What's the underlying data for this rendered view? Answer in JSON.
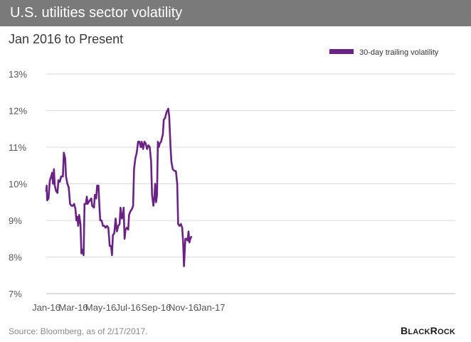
{
  "header": {
    "title": "U.S. utilities sector volatility",
    "subtitle": "Jan 2016 to Present"
  },
  "footer": {
    "source": "Source: Bloomberg, as of 2/17/2017.",
    "logo_text": "BLACKROCK"
  },
  "colors": {
    "title_bar": "#7a7a7a",
    "series": "#6a2285",
    "gridline": "#d9d9d9",
    "axis_text": "#555555"
  },
  "chart_data": {
    "type": "line",
    "title": "U.S. utilities sector volatility",
    "subtitle": "Jan 2016 to Present",
    "xlabel": "",
    "ylabel": "",
    "ylim": [
      7,
      13
    ],
    "y_ticks": [
      13,
      12,
      11,
      10,
      9,
      8,
      7
    ],
    "y_tick_labels": [
      "13%",
      "12%",
      "11%",
      "10%",
      "9%",
      "8%",
      "7%"
    ],
    "x_ticks": [
      "2016-01-01",
      "2016-03-01",
      "2016-05-01",
      "2016-07-01",
      "2016-09-01",
      "2016-11-01",
      "2017-01-01"
    ],
    "x_tick_labels": [
      "Jan-16",
      "Mar-16",
      "May-16",
      "Jul-16",
      "Sep-16",
      "Nov-16",
      "Jan-17"
    ],
    "xlim": [
      "2016-01-01",
      "2017-02-17"
    ],
    "grid": true,
    "legend": "top-right",
    "series": [
      {
        "name": "30-day trailing volatility",
        "points": [
          [
            "2016-01-01",
            9.8
          ],
          [
            "2016-01-02",
            9.95
          ],
          [
            "2016-01-03",
            9.55
          ],
          [
            "2016-01-06",
            9.6
          ],
          [
            "2016-01-09",
            10.1
          ],
          [
            "2016-01-12",
            10.2
          ],
          [
            "2016-01-14",
            10.3
          ],
          [
            "2016-01-16",
            10.0
          ],
          [
            "2016-01-18",
            10.4
          ],
          [
            "2016-01-20",
            9.95
          ],
          [
            "2016-01-23",
            9.8
          ],
          [
            "2016-01-26",
            9.75
          ],
          [
            "2016-01-28",
            10.1
          ],
          [
            "2016-01-31",
            10.05
          ],
          [
            "2016-02-03",
            10.2
          ],
          [
            "2016-02-07",
            10.2
          ],
          [
            "2016-02-09",
            10.85
          ],
          [
            "2016-02-12",
            10.7
          ],
          [
            "2016-02-14",
            10.2
          ],
          [
            "2016-02-17",
            10.0
          ],
          [
            "2016-02-20",
            9.9
          ],
          [
            "2016-02-23",
            9.45
          ],
          [
            "2016-02-26",
            9.4
          ],
          [
            "2016-02-29",
            9.4
          ],
          [
            "2016-03-03",
            9.45
          ],
          [
            "2016-03-06",
            9.3
          ],
          [
            "2016-03-08",
            9.0
          ],
          [
            "2016-03-10",
            9.1
          ],
          [
            "2016-03-12",
            8.85
          ],
          [
            "2016-03-14",
            9.15
          ],
          [
            "2016-03-17",
            8.9
          ],
          [
            "2016-03-19",
            8.1
          ],
          [
            "2016-03-21",
            8.2
          ],
          [
            "2016-03-24",
            8.05
          ],
          [
            "2016-03-26",
            9.45
          ],
          [
            "2016-03-29",
            9.45
          ],
          [
            "2016-03-31",
            9.65
          ],
          [
            "2016-04-02",
            9.45
          ],
          [
            "2016-04-04",
            9.5
          ],
          [
            "2016-04-07",
            9.55
          ],
          [
            "2016-04-10",
            9.6
          ],
          [
            "2016-04-12",
            9.4
          ],
          [
            "2016-04-16",
            9.35
          ],
          [
            "2016-04-18",
            9.7
          ],
          [
            "2016-04-21",
            9.6
          ],
          [
            "2016-04-23",
            9.95
          ],
          [
            "2016-04-26",
            9.95
          ],
          [
            "2016-04-28",
            9.4
          ],
          [
            "2016-04-30",
            9.0
          ],
          [
            "2016-05-03",
            9.0
          ],
          [
            "2016-05-06",
            8.85
          ],
          [
            "2016-05-09",
            8.85
          ],
          [
            "2016-05-12",
            8.8
          ],
          [
            "2016-05-15",
            8.85
          ],
          [
            "2016-05-18",
            8.8
          ],
          [
            "2016-05-21",
            8.3
          ],
          [
            "2016-05-24",
            8.3
          ],
          [
            "2016-05-26",
            8.05
          ],
          [
            "2016-05-28",
            8.6
          ],
          [
            "2016-05-31",
            8.65
          ],
          [
            "2016-06-03",
            9.05
          ],
          [
            "2016-06-06",
            8.7
          ],
          [
            "2016-06-09",
            8.85
          ],
          [
            "2016-06-12",
            8.9
          ],
          [
            "2016-06-14",
            9.35
          ],
          [
            "2016-06-17",
            9.05
          ],
          [
            "2016-06-19",
            9.1
          ],
          [
            "2016-06-21",
            9.35
          ],
          [
            "2016-06-23",
            8.5
          ],
          [
            "2016-06-25",
            8.75
          ],
          [
            "2016-06-28",
            8.8
          ],
          [
            "2016-07-01",
            8.75
          ],
          [
            "2016-07-03",
            9.15
          ],
          [
            "2016-07-06",
            9.25
          ],
          [
            "2016-07-09",
            9.3
          ],
          [
            "2016-07-12",
            9.4
          ],
          [
            "2016-07-14",
            10.4
          ],
          [
            "2016-07-17",
            10.7
          ],
          [
            "2016-07-20",
            10.85
          ],
          [
            "2016-07-23",
            11.15
          ],
          [
            "2016-07-26",
            11.15
          ],
          [
            "2016-07-29",
            11.0
          ],
          [
            "2016-07-31",
            11.15
          ],
          [
            "2016-08-03",
            10.95
          ],
          [
            "2016-08-06",
            11.15
          ],
          [
            "2016-08-09",
            11.1
          ],
          [
            "2016-08-12",
            10.95
          ],
          [
            "2016-08-15",
            11.05
          ],
          [
            "2016-08-18",
            11.0
          ],
          [
            "2016-08-21",
            10.6
          ],
          [
            "2016-08-23",
            9.7
          ],
          [
            "2016-08-26",
            9.4
          ],
          [
            "2016-08-28",
            9.6
          ],
          [
            "2016-08-30",
            10.0
          ],
          [
            "2016-09-01",
            9.5
          ],
          [
            "2016-09-03",
            9.7
          ],
          [
            "2016-09-05",
            11.15
          ],
          [
            "2016-09-07",
            11.0
          ],
          [
            "2016-09-09",
            11.1
          ],
          [
            "2016-09-12",
            11.15
          ],
          [
            "2016-09-16",
            11.35
          ],
          [
            "2016-09-18",
            11.75
          ],
          [
            "2016-09-21",
            11.8
          ],
          [
            "2016-09-24",
            11.95
          ],
          [
            "2016-09-28",
            12.05
          ],
          [
            "2016-09-30",
            11.85
          ],
          [
            "2016-10-03",
            11.0
          ],
          [
            "2016-10-05",
            10.6
          ],
          [
            "2016-10-08",
            10.4
          ],
          [
            "2016-10-12",
            10.35
          ],
          [
            "2016-10-15",
            10.35
          ],
          [
            "2016-10-18",
            10.0
          ],
          [
            "2016-10-20",
            8.9
          ],
          [
            "2016-10-23",
            8.85
          ],
          [
            "2016-10-26",
            8.9
          ],
          [
            "2016-10-29",
            8.8
          ],
          [
            "2016-10-31",
            8.4
          ],
          [
            "2016-11-02",
            7.75
          ],
          [
            "2016-11-05",
            8.5
          ],
          [
            "2016-11-08",
            8.5
          ],
          [
            "2016-11-10",
            8.45
          ],
          [
            "2016-11-12",
            8.7
          ],
          [
            "2016-11-14",
            8.4
          ],
          [
            "2016-11-16",
            8.5
          ],
          [
            "2016-11-18",
            8.55
          ]
        ]
      }
    ]
  }
}
